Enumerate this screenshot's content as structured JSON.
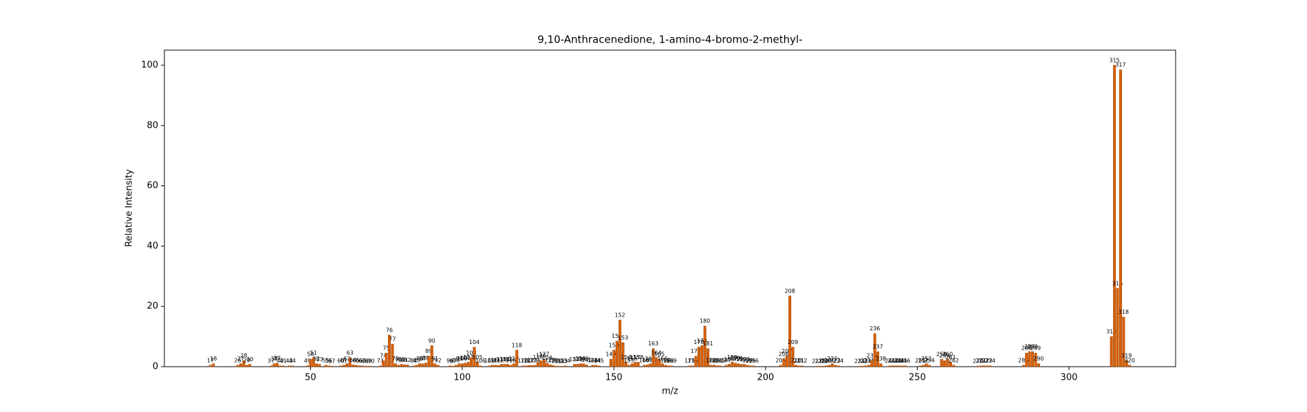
{
  "chart_data": {
    "type": "bar",
    "title": "9,10-Anthracenedione, 1-amino-4-bromo-2-methyl-",
    "x_label": "m/z",
    "y_label": "Relative Intensity",
    "color": "#d95f02",
    "xlim": [
      1.85,
      335.15
    ],
    "xticks": [
      50,
      100,
      150,
      200,
      250,
      300
    ],
    "ylim": [
      0,
      105
    ],
    "yticks": [
      0,
      20,
      40,
      60,
      80,
      100
    ],
    "x": [
      17,
      18,
      26,
      27,
      28,
      29,
      30,
      37,
      38,
      39,
      40,
      41,
      43,
      44,
      49,
      50,
      51,
      52,
      53,
      55,
      56,
      57,
      60,
      61,
      62,
      63,
      64,
      65,
      66,
      67,
      68,
      69,
      70,
      73,
      74,
      75,
      76,
      77,
      78,
      79,
      80,
      81,
      82,
      84,
      85,
      86,
      87,
      88,
      89,
      90,
      91,
      92,
      96,
      97,
      98,
      99,
      100,
      101,
      102,
      103,
      104,
      105,
      106,
      109,
      110,
      111,
      112,
      113,
      114,
      115,
      116,
      117,
      118,
      120,
      121,
      122,
      123,
      124,
      125,
      126,
      127,
      128,
      129,
      130,
      131,
      132,
      133,
      134,
      137,
      138,
      139,
      140,
      141,
      143,
      144,
      145,
      149,
      150,
      151,
      152,
      153,
      154,
      155,
      156,
      157,
      158,
      160,
      161,
      162,
      163,
      164,
      165,
      166,
      167,
      168,
      169,
      175,
      176,
      177,
      178,
      179,
      180,
      181,
      182,
      183,
      184,
      185,
      187,
      188,
      189,
      190,
      191,
      192,
      193,
      194,
      195,
      196,
      205,
      206,
      207,
      208,
      209,
      210,
      211,
      212,
      217,
      218,
      219,
      220,
      221,
      222,
      223,
      224,
      231,
      232,
      233,
      234,
      235,
      236,
      237,
      238,
      241,
      242,
      243,
      244,
      245,
      246,
      251,
      252,
      253,
      254,
      258,
      259,
      260,
      261,
      262,
      270,
      271,
      272,
      273,
      274,
      285,
      286,
      287,
      288,
      289,
      290,
      314,
      315,
      316,
      317,
      318,
      319,
      320
    ],
    "values": [
      0.5,
      1,
      0.5,
      1,
      2,
      0.5,
      0.8,
      0.3,
      1,
      1.2,
      0.3,
      0.3,
      0.3,
      0.3,
      0.3,
      2.5,
      3,
      1,
      0.8,
      0.5,
      0.3,
      0.2,
      0.3,
      0.5,
      1,
      3,
      0.6,
      0.5,
      0.3,
      0.3,
      0.2,
      0.2,
      0.2,
      0.3,
      2,
      4.5,
      10.5,
      7.5,
      1,
      0.5,
      0.8,
      0.6,
      0.6,
      0.3,
      0.5,
      1,
      1,
      1.2,
      3.5,
      7,
      1,
      0.5,
      0.3,
      0.2,
      0.5,
      1,
      1,
      1.2,
      1.5,
      3,
      6.5,
      1.5,
      0.3,
      0.3,
      0.5,
      0.5,
      0.4,
      0.8,
      0.8,
      0.8,
      0.5,
      1,
      5.5,
      0.3,
      0.3,
      0.4,
      0.4,
      0.5,
      1.5,
      2,
      2.5,
      1.2,
      0.6,
      0.4,
      0.2,
      0.2,
      0.2,
      0.3,
      0.8,
      0.8,
      1,
      1,
      0.6,
      0.5,
      0.5,
      0.3,
      2.5,
      5.5,
      8.5,
      15.5,
      8,
      1.5,
      0.5,
      1,
      1.5,
      1.5,
      0.5,
      0.6,
      1,
      6,
      3,
      2.5,
      1,
      0.5,
      0.3,
      0.3,
      0.3,
      0.3,
      3.5,
      6.5,
      7,
      13.5,
      6,
      0.5,
      0.5,
      0.3,
      0.3,
      0.5,
      0.8,
      1.5,
      1.2,
      1,
      0.8,
      0.8,
      0.5,
      0.3,
      0.3,
      0.5,
      2.5,
      3.5,
      23.5,
      6.5,
      0.5,
      0.3,
      0.3,
      0.2,
      0.2,
      0.2,
      0.3,
      0.5,
      1,
      0.5,
      0.3,
      0.2,
      0.2,
      0.3,
      0.5,
      2,
      11,
      5,
      1,
      0.3,
      0.3,
      0.3,
      0.3,
      0.3,
      0.3,
      0.3,
      0.5,
      1,
      0.5,
      2.5,
      2,
      2.5,
      1.5,
      0.5,
      0.2,
      0.3,
      0.3,
      0.3,
      0.3,
      0.5,
      4.5,
      5,
      5,
      4.5,
      1,
      10,
      100,
      26,
      98.5,
      16.5,
      2,
      0.5
    ]
  }
}
